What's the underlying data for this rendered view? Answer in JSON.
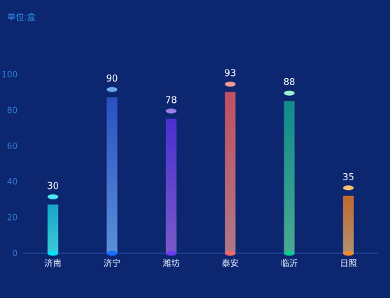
{
  "unit_label": "单位:盒",
  "chart_data": {
    "type": "bar",
    "categories": [
      "济南",
      "济宁",
      "潍坊",
      "泰安",
      "临沂",
      "日照"
    ],
    "values": [
      30,
      90,
      78,
      93,
      88,
      35
    ],
    "ylim": [
      0,
      100
    ],
    "yticks": [
      0,
      20,
      40,
      60,
      80,
      100
    ],
    "grid": false,
    "colors": [
      {
        "top": "#17a6c9",
        "bottom": "#3ccbd8",
        "cap": "#52e6f5",
        "base": "#00e0ff"
      },
      {
        "top": "#2a4fc0",
        "bottom": "#5b90d8",
        "cap": "#6fa8f0",
        "base": "#1a6cff"
      },
      {
        "top": "#4a2fd0",
        "bottom": "#7a5ac8",
        "cap": "#9a80e8",
        "base": "#6a3cf0"
      },
      {
        "top": "#c05060",
        "bottom": "#b07888",
        "cap": "#f09a9a",
        "base": "#f06a6a"
      },
      {
        "top": "#108a8a",
        "bottom": "#4aaa90",
        "cap": "#9af0d0",
        "base": "#10c890"
      },
      {
        "top": "#c06830",
        "bottom": "#b09070",
        "cap": "#f0c070",
        "base": "#f08a30"
      }
    ]
  }
}
